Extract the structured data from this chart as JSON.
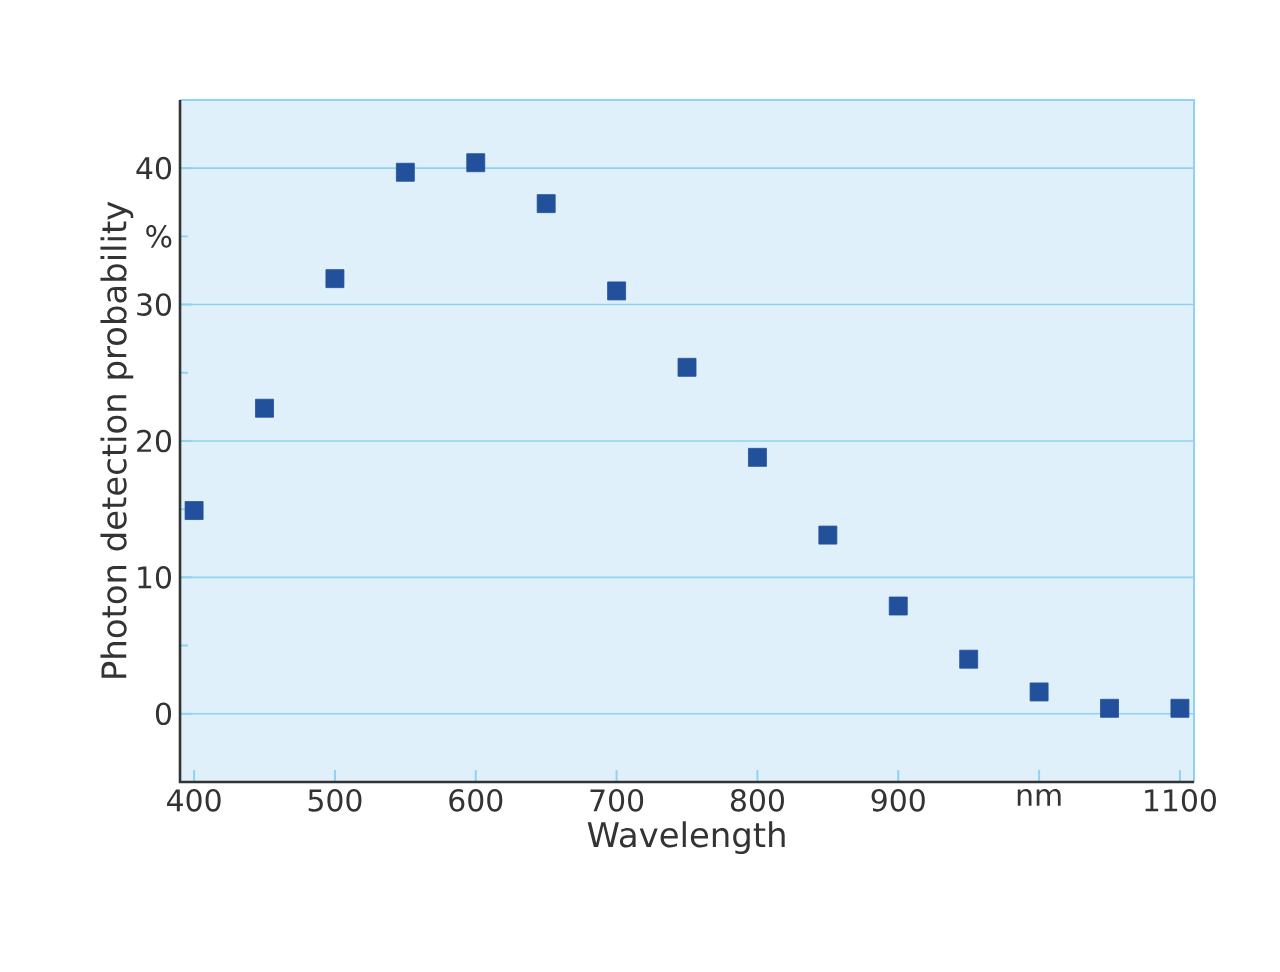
{
  "chart_data": {
    "type": "scatter",
    "xlabel": "Wavelength",
    "ylabel": "Photon detection probability",
    "x": [
      400,
      450,
      500,
      550,
      600,
      650,
      700,
      750,
      800,
      850,
      900,
      950,
      1000,
      1050,
      1100
    ],
    "series": [
      {
        "color": "#22509a",
        "values": [
          14.9,
          22.4,
          31.9,
          39.7,
          40.4,
          37.4,
          31.0,
          25.4,
          18.8,
          13.1,
          7.9,
          4.0,
          1.6,
          0.4,
          0.4
        ]
      }
    ],
    "marker": "square",
    "grid": "y",
    "xlim": [
      390,
      1110
    ],
    "ylim": [
      -5,
      45
    ],
    "xticks": [
      400,
      500,
      600,
      700,
      800,
      900,
      {
        "value": 1000,
        "label": "nm"
      },
      1100
    ],
    "yticks": [
      0,
      {
        "value": 5,
        "label": null
      },
      10,
      {
        "value": 15,
        "label": null
      },
      20,
      {
        "value": 25,
        "label": null
      },
      30,
      {
        "value": 35,
        "label": "%"
      },
      40
    ]
  }
}
